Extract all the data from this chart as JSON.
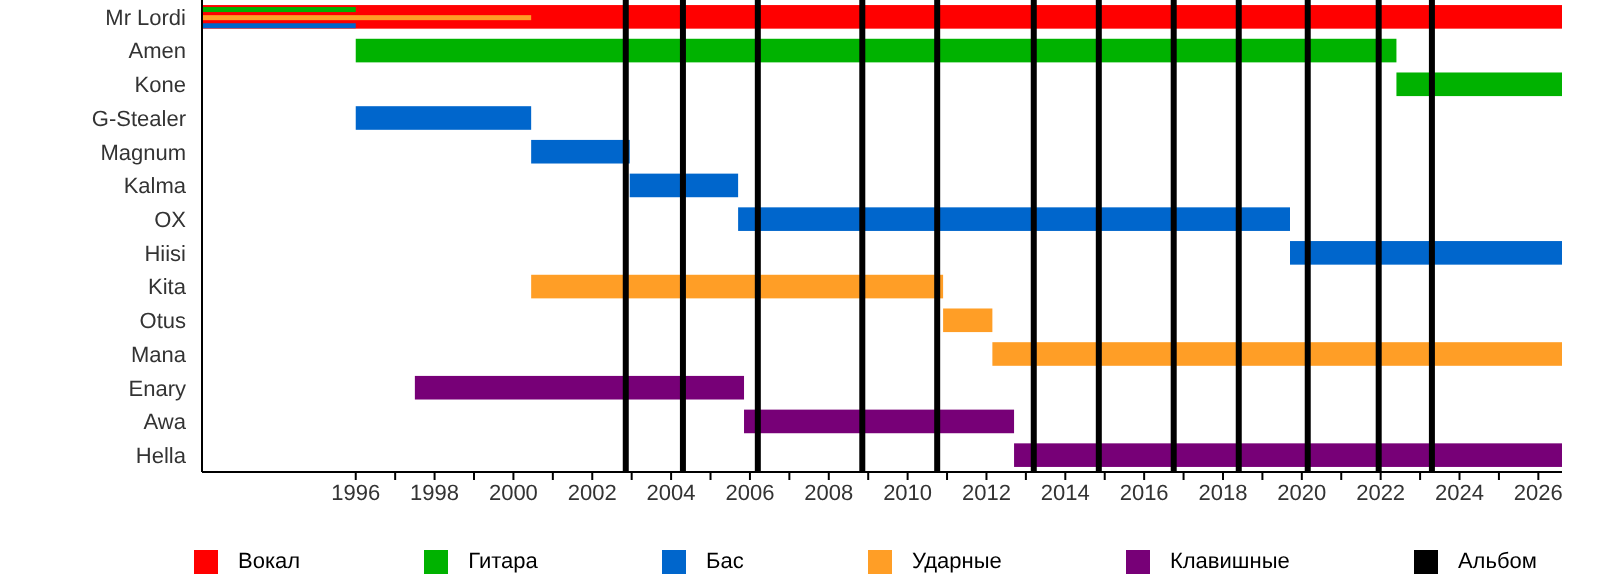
{
  "chart_data": {
    "type": "bar",
    "orientation": "horizontal",
    "legend": "bottom",
    "grid": false,
    "categories": [
      "Mr Lordi",
      "Amen",
      "Kone",
      "G-Stealer",
      "Magnum",
      "Kalma",
      "OX",
      "Hiisi",
      "Kita",
      "Otus",
      "Mana",
      "Enary",
      "Awa",
      "Hella"
    ],
    "xlim": [
      1992.1,
      2026.6
    ],
    "xticks": [
      {
        "value": 1996,
        "label": "1996"
      },
      {
        "value": 1997,
        "label": null
      },
      {
        "value": 1998,
        "label": "1998"
      },
      {
        "value": 1999,
        "label": null
      },
      {
        "value": 2000,
        "label": "2000"
      },
      {
        "value": 2001,
        "label": null
      },
      {
        "value": 2002,
        "label": "2002"
      },
      {
        "value": 2003,
        "label": null
      },
      {
        "value": 2004,
        "label": "2004"
      },
      {
        "value": 2005,
        "label": null
      },
      {
        "value": 2006,
        "label": "2006"
      },
      {
        "value": 2007,
        "label": null
      },
      {
        "value": 2008,
        "label": "2008"
      },
      {
        "value": 2009,
        "label": null
      },
      {
        "value": 2010,
        "label": "2010"
      },
      {
        "value": 2011,
        "label": null
      },
      {
        "value": 2012,
        "label": "2012"
      },
      {
        "value": 2013,
        "label": null
      },
      {
        "value": 2014,
        "label": "2014"
      },
      {
        "value": 2015,
        "label": null
      },
      {
        "value": 2016,
        "label": "2016"
      },
      {
        "value": 2017,
        "label": null
      },
      {
        "value": 2018,
        "label": "2018"
      },
      {
        "value": 2019,
        "label": null
      },
      {
        "value": 2020,
        "label": "2020"
      },
      {
        "value": 2021,
        "label": null
      },
      {
        "value": 2022,
        "label": "2022"
      },
      {
        "value": 2023,
        "label": null
      },
      {
        "value": 2024,
        "label": "2024"
      },
      {
        "value": 2025,
        "label": null
      },
      {
        "value": 2026,
        "label": "2026"
      }
    ],
    "series": [
      {
        "name": "Вокал",
        "color": "#ff0000",
        "base": [
          1992.1,
          null,
          null,
          null,
          null,
          null,
          null,
          null,
          null,
          null,
          null,
          null,
          null,
          null
        ],
        "values": [
          34.5,
          null,
          null,
          null,
          null,
          null,
          null,
          null,
          null,
          null,
          null,
          null,
          null,
          null
        ]
      },
      {
        "name": "Гитара",
        "color": "#00b200",
        "base": [
          null,
          1996,
          2022.4,
          null,
          null,
          null,
          null,
          null,
          null,
          null,
          null,
          null,
          null,
          null
        ],
        "values": [
          null,
          26.4,
          4.2,
          null,
          null,
          null,
          null,
          null,
          null,
          null,
          null,
          null,
          null,
          null
        ]
      },
      {
        "name": "Бас",
        "color": "#0066cc",
        "base": [
          null,
          null,
          null,
          1996,
          2000.45,
          2002.95,
          2005.7,
          2019.7,
          null,
          null,
          null,
          null,
          null,
          null
        ],
        "values": [
          null,
          null,
          null,
          4.45,
          2.5,
          2.75,
          14,
          6.9,
          null,
          null,
          null,
          null,
          null,
          null
        ]
      },
      {
        "name": "Ударные",
        "color": "#ff9e26",
        "base": [
          null,
          null,
          null,
          null,
          null,
          null,
          null,
          null,
          2000.45,
          2010.9,
          2012.15,
          null,
          null,
          null
        ],
        "values": [
          null,
          null,
          null,
          null,
          null,
          null,
          null,
          null,
          10.45,
          1.25,
          14.45,
          null,
          null,
          null
        ]
      },
      {
        "name": "Клавишные",
        "color": "#770077",
        "base": [
          null,
          null,
          null,
          null,
          null,
          null,
          null,
          null,
          null,
          null,
          null,
          1997.5,
          2005.85,
          2012.7
        ],
        "values": [
          null,
          null,
          null,
          null,
          null,
          null,
          null,
          null,
          null,
          null,
          null,
          8.35,
          6.85,
          13.9
        ]
      },
      {
        "color": "#00b200",
        "base": [
          1992.1,
          null,
          null,
          null,
          null,
          null,
          null,
          null,
          null,
          null,
          null,
          null,
          null,
          null
        ],
        "values": [
          3.9,
          null,
          null,
          null,
          null,
          null,
          null,
          null,
          null,
          null,
          null,
          null,
          null,
          null
        ]
      },
      {
        "color": "#ff9e26",
        "base": [
          1992.1,
          null,
          null,
          null,
          null,
          null,
          null,
          null,
          null,
          null,
          null,
          null,
          null,
          null
        ],
        "values": [
          8.35,
          null,
          null,
          null,
          null,
          null,
          null,
          null,
          null,
          null,
          null,
          null,
          null,
          null
        ]
      },
      {
        "color": "#0066cc",
        "base": [
          1992.1,
          null,
          null,
          null,
          null,
          null,
          null,
          null,
          null,
          null,
          null,
          null,
          null,
          null
        ],
        "values": [
          3.9,
          null,
          null,
          null,
          null,
          null,
          null,
          null,
          null,
          null,
          null,
          null,
          null,
          null
        ]
      }
    ],
    "ref_lines": [
      {
        "axis": "x",
        "value": 2002.85,
        "label": "Альбом",
        "color": "#000000"
      },
      {
        "axis": "x",
        "value": 2004.3,
        "label": null,
        "color": "#000000"
      },
      {
        "axis": "x",
        "value": 2006.2,
        "label": null,
        "color": "#000000"
      },
      {
        "axis": "x",
        "value": 2008.85,
        "label": null,
        "color": "#000000"
      },
      {
        "axis": "x",
        "value": 2010.75,
        "label": null,
        "color": "#000000"
      },
      {
        "axis": "x",
        "value": 2013.2,
        "label": null,
        "color": "#000000"
      },
      {
        "axis": "x",
        "value": 2014.85,
        "label": null,
        "color": "#000000"
      },
      {
        "axis": "x",
        "value": 2016.75,
        "label": null,
        "color": "#000000"
      },
      {
        "axis": "x",
        "value": 2018.4,
        "label": null,
        "color": "#000000"
      },
      {
        "axis": "x",
        "value": 2020.15,
        "label": null,
        "color": "#000000"
      },
      {
        "axis": "x",
        "value": 2021.95,
        "label": null,
        "color": "#000000"
      },
      {
        "axis": "x",
        "value": 2023.3,
        "label": null,
        "color": "#000000"
      }
    ]
  }
}
